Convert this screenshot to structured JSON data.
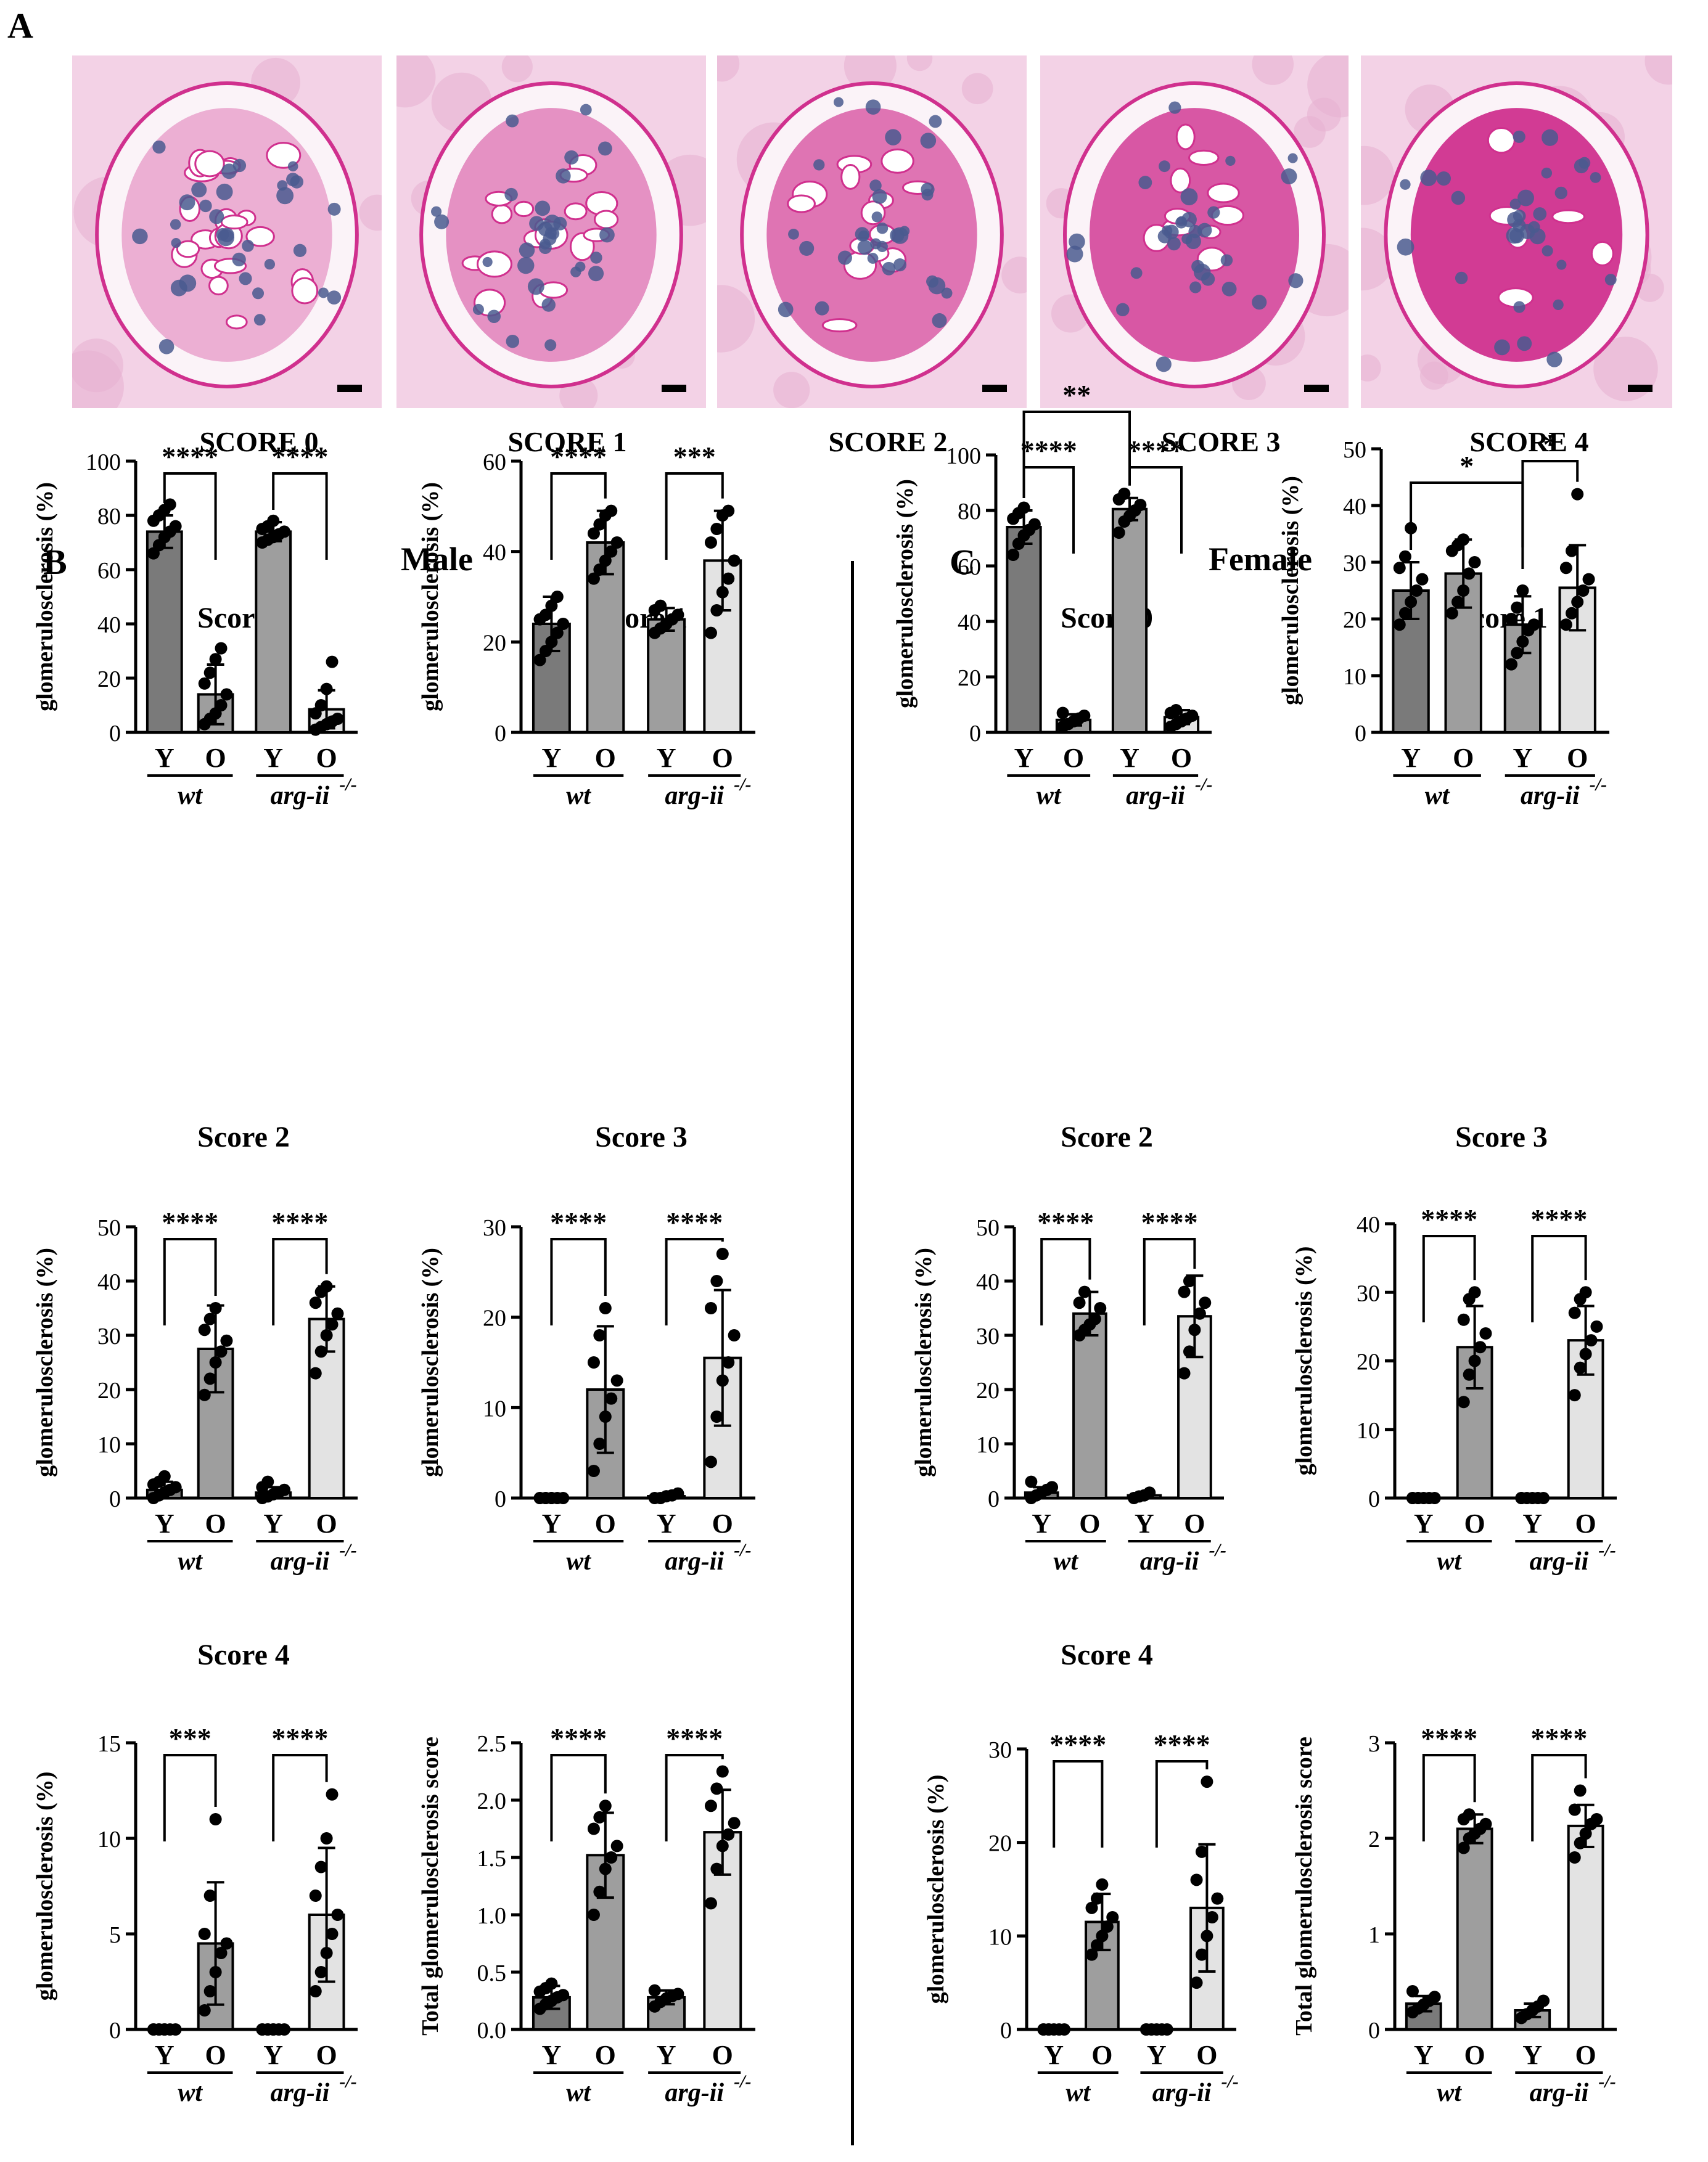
{
  "panel_a": {
    "letter": "A",
    "labels": [
      "SCORE 0",
      "SCORE 1",
      "SCORE 2",
      "SCORE 3",
      "SCORE 4"
    ]
  },
  "panel_b": {
    "letter": "B",
    "title": "Male"
  },
  "panel_c": {
    "letter": "C",
    "title": "Female"
  },
  "colors": {
    "dark": "#7a7a7a",
    "medium": "#9e9e9e",
    "light": "#e3e3e3",
    "axis": "#000000",
    "stain_bg": "#f3d2e6",
    "stain_pink": "#d0308e",
    "nuclei": "#4a5a8f"
  },
  "chart_data": [
    {
      "id": "male-score0",
      "type": "bar",
      "title": "Score 0",
      "ylabel": "glomerulosclerosis (%)",
      "ylim": [
        0,
        100
      ],
      "yticks": [
        "0",
        "20",
        "40",
        "60",
        "80",
        "100"
      ],
      "categories": [
        "Y",
        "O",
        "Y",
        "O"
      ],
      "groups": [
        "wt",
        "arg-ii"
      ],
      "superscript": "-/-",
      "values": [
        74,
        14,
        74,
        8.5
      ],
      "errors": [
        6,
        11,
        3.5,
        7
      ],
      "points": [
        [
          66,
          69,
          72,
          74,
          76,
          78,
          80,
          82,
          84
        ],
        [
          3,
          5,
          7,
          10,
          14,
          18,
          22,
          27,
          31
        ],
        [
          70,
          71,
          72,
          73,
          74,
          75,
          76,
          78
        ],
        [
          1,
          2,
          3,
          4,
          5,
          7,
          10,
          16,
          26
        ]
      ],
      "brackets": [
        {
          "from": 0,
          "to": 1,
          "label": "****"
        },
        {
          "from": 2,
          "to": 3,
          "label": "****"
        }
      ]
    },
    {
      "id": "male-score1",
      "type": "bar",
      "title": "Score 1",
      "ylabel": "glomerulosclerosis (%)",
      "ylim": [
        0,
        60
      ],
      "yticks": [
        "0",
        "20",
        "40",
        "60"
      ],
      "categories": [
        "Y",
        "O",
        "Y",
        "O"
      ],
      "groups": [
        "wt",
        "arg-ii"
      ],
      "superscript": "-/-",
      "values": [
        24,
        42,
        25,
        38
      ],
      "errors": [
        6,
        7,
        2.5,
        11
      ],
      "points": [
        [
          16,
          18,
          20,
          22,
          24,
          25,
          26,
          28,
          30
        ],
        [
          34,
          36,
          38,
          40,
          42,
          44,
          46,
          48,
          49
        ],
        [
          22,
          23,
          24,
          25,
          26,
          27,
          28
        ],
        [
          22,
          27,
          31,
          34,
          38,
          42,
          45,
          48,
          49
        ]
      ],
      "brackets": [
        {
          "from": 0,
          "to": 1,
          "label": "****"
        },
        {
          "from": 2,
          "to": 3,
          "label": "***"
        }
      ]
    },
    {
      "id": "male-score2",
      "type": "bar",
      "title": "Score 2",
      "ylabel": "glomerulosclerosis (%)",
      "ylim": [
        0,
        50
      ],
      "yticks": [
        "0",
        "10",
        "20",
        "30",
        "40",
        "50"
      ],
      "categories": [
        "Y",
        "O",
        "Y",
        "O"
      ],
      "groups": [
        "wt",
        "arg-ii"
      ],
      "superscript": "-/-",
      "values": [
        1.5,
        27.5,
        1,
        33
      ],
      "errors": [
        1.5,
        8,
        1,
        6
      ],
      "points": [
        [
          0,
          0.5,
          1,
          1.5,
          2,
          2.5,
          3,
          4
        ],
        [
          19,
          22,
          25,
          27,
          29,
          31,
          33,
          35
        ],
        [
          0,
          0.3,
          0.7,
          1,
          1.5,
          2,
          3
        ],
        [
          23,
          27,
          30,
          32,
          34,
          36,
          38,
          39
        ]
      ],
      "brackets": [
        {
          "from": 0,
          "to": 1,
          "label": "****"
        },
        {
          "from": 2,
          "to": 3,
          "label": "****"
        }
      ]
    },
    {
      "id": "male-score3",
      "type": "bar",
      "title": "Score 3",
      "ylabel": "glomerulosclerosis (%)",
      "ylim": [
        0,
        30
      ],
      "yticks": [
        "0",
        "10",
        "20",
        "30"
      ],
      "categories": [
        "Y",
        "O",
        "Y",
        "O"
      ],
      "groups": [
        "wt",
        "arg-ii"
      ],
      "superscript": "-/-",
      "values": [
        0,
        12,
        0.2,
        15.5
      ],
      "errors": [
        0,
        7,
        0.3,
        7.5
      ],
      "points": [
        [
          0,
          0,
          0,
          0,
          0,
          0,
          0,
          0
        ],
        [
          3,
          6,
          9,
          11,
          13,
          15,
          18,
          21
        ],
        [
          0,
          0,
          0.2,
          0.3,
          0.5
        ],
        [
          4,
          9,
          13,
          15,
          18,
          21,
          24,
          27
        ]
      ],
      "brackets": [
        {
          "from": 0,
          "to": 1,
          "label": "****"
        },
        {
          "from": 2,
          "to": 3,
          "label": "****"
        }
      ]
    },
    {
      "id": "male-score4",
      "type": "bar",
      "title": "Score 4",
      "ylabel": "glomerulosclerosis (%)",
      "ylim": [
        0,
        15
      ],
      "yticks": [
        "0",
        "5",
        "10",
        "15"
      ],
      "categories": [
        "Y",
        "O",
        "Y",
        "O"
      ],
      "groups": [
        "wt",
        "arg-ii"
      ],
      "superscript": "-/-",
      "values": [
        0,
        4.5,
        0,
        6
      ],
      "errors": [
        0,
        3.2,
        0,
        3.5
      ],
      "points": [
        [
          0,
          0,
          0,
          0,
          0,
          0,
          0,
          0
        ],
        [
          1,
          2,
          3,
          4,
          4.5,
          5,
          7,
          11
        ],
        [
          0,
          0,
          0,
          0,
          0,
          0,
          0,
          0
        ],
        [
          2,
          3,
          4,
          5,
          6,
          7,
          8.5,
          10,
          12.3
        ]
      ],
      "brackets": [
        {
          "from": 0,
          "to": 1,
          "label": "***"
        },
        {
          "from": 2,
          "to": 3,
          "label": "****"
        }
      ]
    },
    {
      "id": "male-total",
      "type": "bar",
      "title": "",
      "ylabel": "Total glomerulosclerosis score",
      "ylim": [
        0,
        2.5
      ],
      "yticks": [
        "0.0",
        "0.5",
        "1.0",
        "1.5",
        "2.0",
        "2.5"
      ],
      "categories": [
        "Y",
        "O",
        "Y",
        "O"
      ],
      "groups": [
        "wt",
        "arg-ii"
      ],
      "superscript": "-/-",
      "values": [
        0.28,
        1.52,
        0.28,
        1.72
      ],
      "errors": [
        0.1,
        0.37,
        0.06,
        0.37
      ],
      "points": [
        [
          0.18,
          0.22,
          0.25,
          0.28,
          0.3,
          0.33,
          0.36,
          0.4
        ],
        [
          1,
          1.2,
          1.4,
          1.5,
          1.6,
          1.75,
          1.85,
          1.95
        ],
        [
          0.2,
          0.24,
          0.27,
          0.29,
          0.31,
          0.34
        ],
        [
          1.1,
          1.4,
          1.6,
          1.7,
          1.8,
          1.95,
          2.1,
          2.25
        ]
      ],
      "brackets": [
        {
          "from": 0,
          "to": 1,
          "label": "****"
        },
        {
          "from": 2,
          "to": 3,
          "label": "****"
        }
      ]
    },
    {
      "id": "female-score0",
      "type": "bar",
      "title": "Score 0",
      "ylabel": "glomerulosclerosis (%)",
      "ylim": [
        0,
        100
      ],
      "yticks": [
        "0",
        "20",
        "40",
        "60",
        "80",
        "100"
      ],
      "categories": [
        "Y",
        "O",
        "Y",
        "O"
      ],
      "groups": [
        "wt",
        "arg-ii"
      ],
      "superscript": "-/-",
      "values": [
        74,
        4.5,
        80.5,
        5.5
      ],
      "errors": [
        6,
        2,
        4,
        2.5
      ],
      "points": [
        [
          64,
          68,
          71,
          73,
          75,
          77,
          79,
          81
        ],
        [
          2,
          3,
          4,
          5,
          6,
          7
        ],
        [
          72,
          76,
          78,
          80,
          82,
          84,
          86
        ],
        [
          2,
          3,
          4,
          5,
          6,
          7,
          8
        ]
      ],
      "brackets": [
        {
          "from": 0,
          "to": 1,
          "label": "****"
        },
        {
          "from": 2,
          "to": 3,
          "label": "****"
        },
        {
          "from": 0,
          "to": 2,
          "label": "**"
        }
      ]
    },
    {
      "id": "female-score1",
      "type": "bar",
      "title": "Score 1",
      "ylabel": "glomerulosclerosis (%)",
      "ylim": [
        0,
        50
      ],
      "yticks": [
        "0",
        "10",
        "20",
        "30",
        "40",
        "50"
      ],
      "categories": [
        "Y",
        "O",
        "Y",
        "O"
      ],
      "groups": [
        "wt",
        "arg-ii"
      ],
      "superscript": "-/-",
      "values": [
        25,
        28,
        19,
        25.5
      ],
      "errors": [
        5,
        6,
        5,
        7.5
      ],
      "points": [
        [
          19,
          21,
          23,
          25,
          27,
          29,
          31,
          36
        ],
        [
          21,
          23,
          25,
          28,
          30,
          32,
          33,
          34
        ],
        [
          12,
          14,
          16,
          18,
          19,
          20,
          22,
          25
        ],
        [
          19,
          21,
          23,
          25,
          27,
          29,
          32,
          42
        ]
      ],
      "brackets": [
        {
          "from": 0,
          "to": 2,
          "label": "*"
        },
        {
          "from": 2,
          "to": 3,
          "label": "*"
        }
      ]
    },
    {
      "id": "female-score2",
      "type": "bar",
      "title": "Score 2",
      "ylabel": "glomerulosclerosis (%)",
      "ylim": [
        0,
        50
      ],
      "yticks": [
        "0",
        "10",
        "20",
        "30",
        "40",
        "50"
      ],
      "categories": [
        "Y",
        "O",
        "Y",
        "O"
      ],
      "groups": [
        "wt",
        "arg-ii"
      ],
      "superscript": "-/-",
      "values": [
        1,
        34,
        0.5,
        33.5
      ],
      "errors": [
        1,
        4,
        0.5,
        7.5
      ],
      "points": [
        [
          0,
          0.5,
          1,
          1.5,
          2,
          3
        ],
        [
          30,
          31,
          32,
          33,
          35,
          36,
          38
        ],
        [
          0,
          0.3,
          0.5,
          1
        ],
        [
          23,
          27,
          31,
          34,
          36,
          38,
          40
        ]
      ],
      "brackets": [
        {
          "from": 0,
          "to": 1,
          "label": "****"
        },
        {
          "from": 2,
          "to": 3,
          "label": "****"
        }
      ]
    },
    {
      "id": "female-score3",
      "type": "bar",
      "title": "Score 3",
      "ylabel": "glomerulosclerosis (%)",
      "ylim": [
        0,
        40
      ],
      "yticks": [
        "0",
        "10",
        "20",
        "30",
        "40"
      ],
      "categories": [
        "Y",
        "O",
        "Y",
        "O"
      ],
      "groups": [
        "wt",
        "arg-ii"
      ],
      "superscript": "-/-",
      "values": [
        0,
        22,
        0,
        23
      ],
      "errors": [
        0,
        6,
        0,
        5
      ],
      "points": [
        [
          0,
          0,
          0,
          0,
          0,
          0,
          0
        ],
        [
          14,
          18,
          20,
          22,
          24,
          26,
          29,
          30
        ],
        [
          0,
          0,
          0,
          0,
          0,
          0
        ],
        [
          15,
          19,
          21,
          23,
          25,
          27,
          29,
          30
        ]
      ],
      "brackets": [
        {
          "from": 0,
          "to": 1,
          "label": "****"
        },
        {
          "from": 2,
          "to": 3,
          "label": "****"
        }
      ]
    },
    {
      "id": "female-score4",
      "type": "bar",
      "title": "Score 4",
      "ylabel": "glomerulosclerosis (%)",
      "ylim": [
        0,
        30
      ],
      "yticks": [
        "0",
        "10",
        "20",
        "30"
      ],
      "categories": [
        "Y",
        "O",
        "Y",
        "O"
      ],
      "groups": [
        "wt",
        "arg-ii"
      ],
      "superscript": "-/-",
      "values": [
        0,
        11.5,
        0,
        13
      ],
      "errors": [
        0,
        3,
        0,
        6.8
      ],
      "points": [
        [
          0,
          0,
          0,
          0,
          0,
          0,
          0
        ],
        [
          8,
          9,
          10,
          11,
          12,
          13,
          14,
          15.5
        ],
        [
          0,
          0,
          0,
          0,
          0,
          0
        ],
        [
          5,
          8,
          10,
          12,
          14,
          16,
          19,
          26.5
        ]
      ],
      "brackets": [
        {
          "from": 0,
          "to": 1,
          "label": "****"
        },
        {
          "from": 2,
          "to": 3,
          "label": "****"
        }
      ]
    },
    {
      "id": "female-total",
      "type": "bar",
      "title": "",
      "ylabel": "Total glomerulosclerosis score",
      "ylim": [
        0,
        3
      ],
      "yticks": [
        "0",
        "1",
        "2",
        "3"
      ],
      "categories": [
        "Y",
        "O",
        "Y",
        "O"
      ],
      "groups": [
        "wt",
        "arg-ii"
      ],
      "superscript": "-/-",
      "values": [
        0.27,
        2.1,
        0.2,
        2.13
      ],
      "errors": [
        0.08,
        0.15,
        0.07,
        0.22
      ],
      "points": [
        [
          0.18,
          0.22,
          0.26,
          0.3,
          0.34,
          0.4
        ],
        [
          1.9,
          2,
          2.05,
          2.1,
          2.15,
          2.2,
          2.25
        ],
        [
          0.12,
          0.16,
          0.2,
          0.24,
          0.3
        ],
        [
          1.8,
          1.95,
          2.05,
          2.15,
          2.2,
          2.3,
          2.5
        ]
      ],
      "brackets": [
        {
          "from": 0,
          "to": 1,
          "label": "****"
        },
        {
          "from": 2,
          "to": 3,
          "label": "****"
        }
      ]
    }
  ]
}
